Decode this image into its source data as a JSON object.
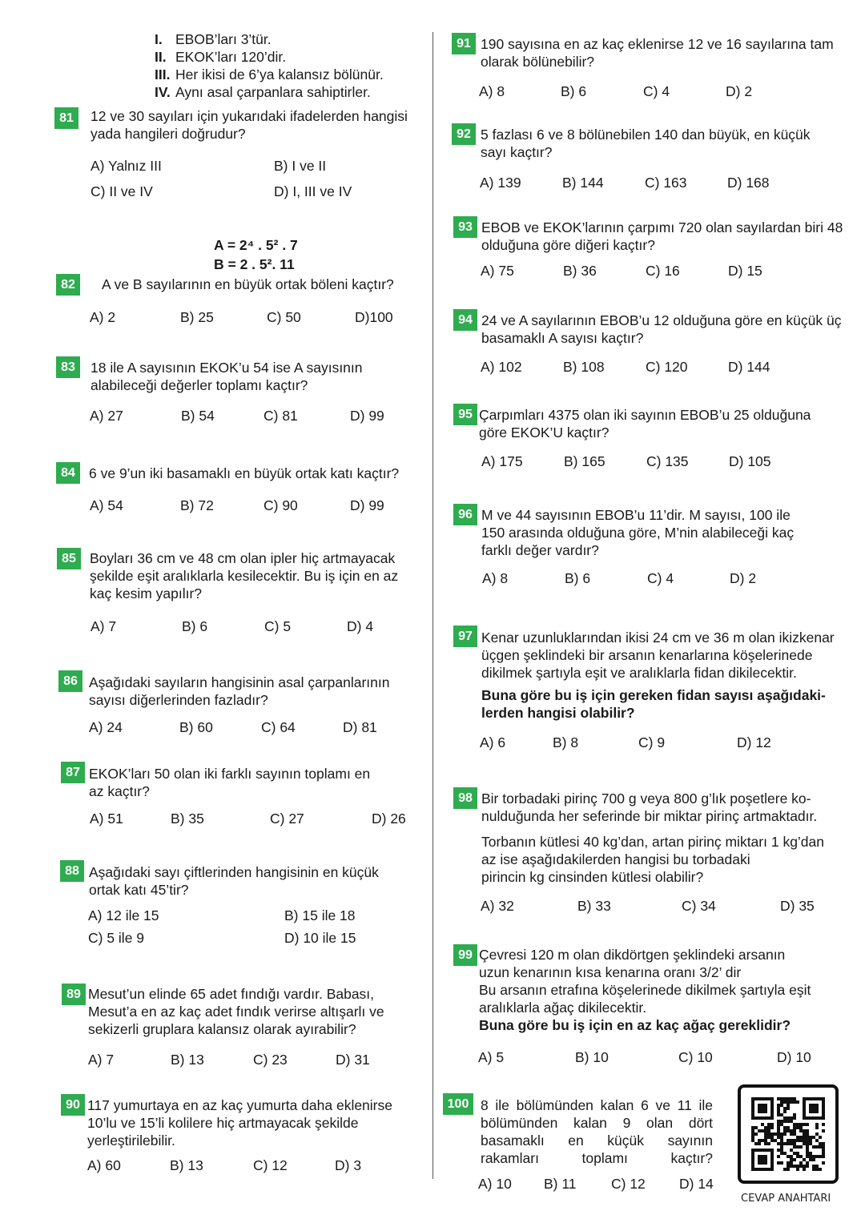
{
  "accent_color": "#2eac4f",
  "q81_statements": [
    {
      "num": "I.",
      "text": "EBOB’ları 3’tür."
    },
    {
      "num": "II.",
      "text": "EKOK’ları 120’dir."
    },
    {
      "num": "III.",
      "text": "Her ikisi de 6’ya kalansız bölünür."
    },
    {
      "num": "IV.",
      "text": "Aynı asal çarpanlara sahiptirler."
    }
  ],
  "q82_formulas": [
    "A = 2⁴ . 5² . 7",
    "B = 2 . 5². 11"
  ],
  "questions": [
    {
      "number": "81",
      "lines": [
        "12 ve 30 sayıları için yukarıdaki ifadelerden hangisi",
        "yada hangileri doğrudur?"
      ],
      "options": [
        "A) Yalnız III",
        "B) I ve II",
        "C) II ve IV",
        "D) I, III ve IV"
      ]
    },
    {
      "number": "82",
      "lines": [
        "A ve B sayılarının en büyük ortak böleni  kaçtır?"
      ],
      "options": [
        "A) 2",
        "B) 25",
        "C) 50",
        "D)100"
      ]
    },
    {
      "number": "83",
      "lines": [
        "18 ile A sayısının EKOK’u 54 ise A sayısının",
        "alabileceği değerler toplamı kaçtır?"
      ],
      "options": [
        "A) 27",
        "B) 54",
        "C) 81",
        "D) 99"
      ]
    },
    {
      "number": "84",
      "lines": [
        "6 ve 9’un iki basamaklı en büyük ortak katı kaçtır?"
      ],
      "options": [
        "A) 54",
        "B) 72",
        "C) 90",
        "D) 99"
      ]
    },
    {
      "number": "85",
      "lines": [
        "Boyları 36 cm ve 48 cm olan ipler hiç artmayacak",
        "şekilde eşit aralıklarla kesilecektir. Bu iş için en az",
        "kaç kesim yapılır?"
      ],
      "options": [
        "A) 7",
        "B) 6",
        "C) 5",
        "D) 4"
      ]
    },
    {
      "number": "86",
      "lines": [
        "Aşağıdaki sayıların hangisinin asal çarpanlarının",
        "sayısı diğerlerinden fazladır?"
      ],
      "options": [
        "A) 24",
        "B) 60",
        "C) 64",
        "D) 81"
      ]
    },
    {
      "number": "87",
      "lines": [
        "EKOK’ları 50 olan iki farklı sayının toplamı en",
        "az kaçtır?"
      ],
      "options": [
        "A) 51",
        "B) 35",
        "C) 27",
        "D) 26"
      ]
    },
    {
      "number": "88",
      "lines": [
        "Aşağıdaki sayı çiftlerinden hangisinin en küçük",
        "ortak katı 45’tir?"
      ],
      "options": [
        "A) 12 ile 15",
        "B) 15 ile 18",
        "C) 5 ile 9",
        "D) 10 ile 15"
      ]
    },
    {
      "number": "89",
      "lines": [
        "Mesut’un elinde 65 adet fındığı vardır. Babası,",
        "Mesut’a en az kaç adet fındık verirse altışarlı ve",
        "sekizerli gruplara kalansız olarak ayırabilir?"
      ],
      "options": [
        "A) 7",
        "B) 13",
        "C) 23",
        "D) 31"
      ]
    },
    {
      "number": "90",
      "lines": [
        "117 yumurtaya en az kaç yumurta daha eklenirse",
        "10’lu ve 15’li kolilere hiç artmayacak şekilde",
        "yerleştirilebilir."
      ],
      "options": [
        "A) 60",
        "B) 13",
        "C) 12",
        "D) 3"
      ]
    },
    {
      "number": "91",
      "lines": [
        "190 sayısına en az kaç eklenirse 12 ve 16 sayılarına tam",
        "olarak bölünebilir?"
      ],
      "options": [
        "A) 8",
        "B) 6",
        "C) 4",
        "D) 2"
      ]
    },
    {
      "number": "92",
      "lines": [
        "5 fazlası 6 ve 8 bölünebilen 140 dan büyük, en küçük",
        "sayı kaçtır?"
      ],
      "options": [
        "A) 139",
        "B) 144",
        "C) 163",
        "D) 168"
      ]
    },
    {
      "number": "93",
      "lines": [
        "EBOB ve EKOK’larının çarpımı 720 olan sayılardan biri 48",
        "olduğuna göre diğeri kaçtır?"
      ],
      "options": [
        "A)  75",
        "B) 36",
        "C) 16",
        "D) 15"
      ]
    },
    {
      "number": "94",
      "lines": [
        "24 ve A sayılarının EBOB’u 12 olduğuna göre en küçük üç",
        "basamaklı A sayısı kaçtır?"
      ],
      "options": [
        "A) 102",
        "B) 108",
        "C) 120",
        "D) 144"
      ]
    },
    {
      "number": "95",
      "lines": [
        "Çarpımları 4375 olan iki sayının EBOB’u 25 olduğuna",
        "göre EKOK’U kaçtır?"
      ],
      "options": [
        "A) 175",
        "B) 165",
        "C) 135",
        "D) 105"
      ]
    },
    {
      "number": "96",
      "lines": [
        "M ve 44 sayısının EBOB’u 11’dir. M sayısı, 100 ile",
        "150 arasında olduğuna göre, M’nin alabileceği kaç",
        "farklı değer vardır?"
      ],
      "options": [
        "A) 8",
        "B) 6",
        "C) 4",
        "D) 2"
      ]
    },
    {
      "number": "97",
      "lines": [
        "Kenar uzunluklarından ikisi 24 cm ve 36 m olan ikizkenar",
        "üçgen şeklindeki bir arsanın kenarlarına köşelerinede",
        "dikilmek şartıyla eşit ve aralıklarla fidan dikilecektir."
      ],
      "bold_lines": [
        "Buna göre bu iş için gereken fidan sayısı aşağıdaki-",
        "lerden hangisi olabilir?"
      ],
      "options": [
        "A) 6",
        "B) 8",
        "C) 9",
        "D) 12"
      ]
    },
    {
      "number": "98",
      "lines": [
        "Bir torbadaki pirinç 700 g veya 800 g’lık poşetlere ko-",
        "nulduğunda her seferinde bir miktar pirinç artmaktadır."
      ],
      "extra_lines": [
        "Torbanın kütlesi 40 kg’dan, artan pirinç miktarı 1 kg’dan",
        "az ise aşağıdakilerden hangisi bu torbadaki",
        "pirincin kg cinsinden kütlesi olabilir?"
      ],
      "options": [
        "A) 32",
        "B) 33",
        "C) 34",
        "D) 35"
      ]
    },
    {
      "number": "99",
      "lines": [
        "Çevresi 120 m olan dikdörtgen şeklindeki arsanın",
        "uzun kenarının kısa kenarına oranı 3/2’ dir",
        "Bu arsanın etrafına köşelerinede dikilmek şartıyla eşit",
        "aralıklarla ağaç dikilecektir."
      ],
      "bold_lines": [
        "Buna göre bu iş için en az kaç ağaç gereklidir?"
      ],
      "options": [
        "A) 5",
        "B) 10",
        "C) 10",
        "D) 10"
      ]
    },
    {
      "number": "100",
      "lines": [
        "8 ile bölümünden kalan 6 ve 11 ile",
        "bölümünden kalan 9 olan dört",
        "basamaklı en küçük sayının",
        "rakamları toplamı kaçtır?"
      ],
      "options": [
        "A) 10",
        "B) 11",
        "C) 12",
        "D) 14"
      ]
    }
  ],
  "answer_key": {
    "label": "CEVAP ANAHTARI",
    "icon": "qr-code-icon"
  }
}
